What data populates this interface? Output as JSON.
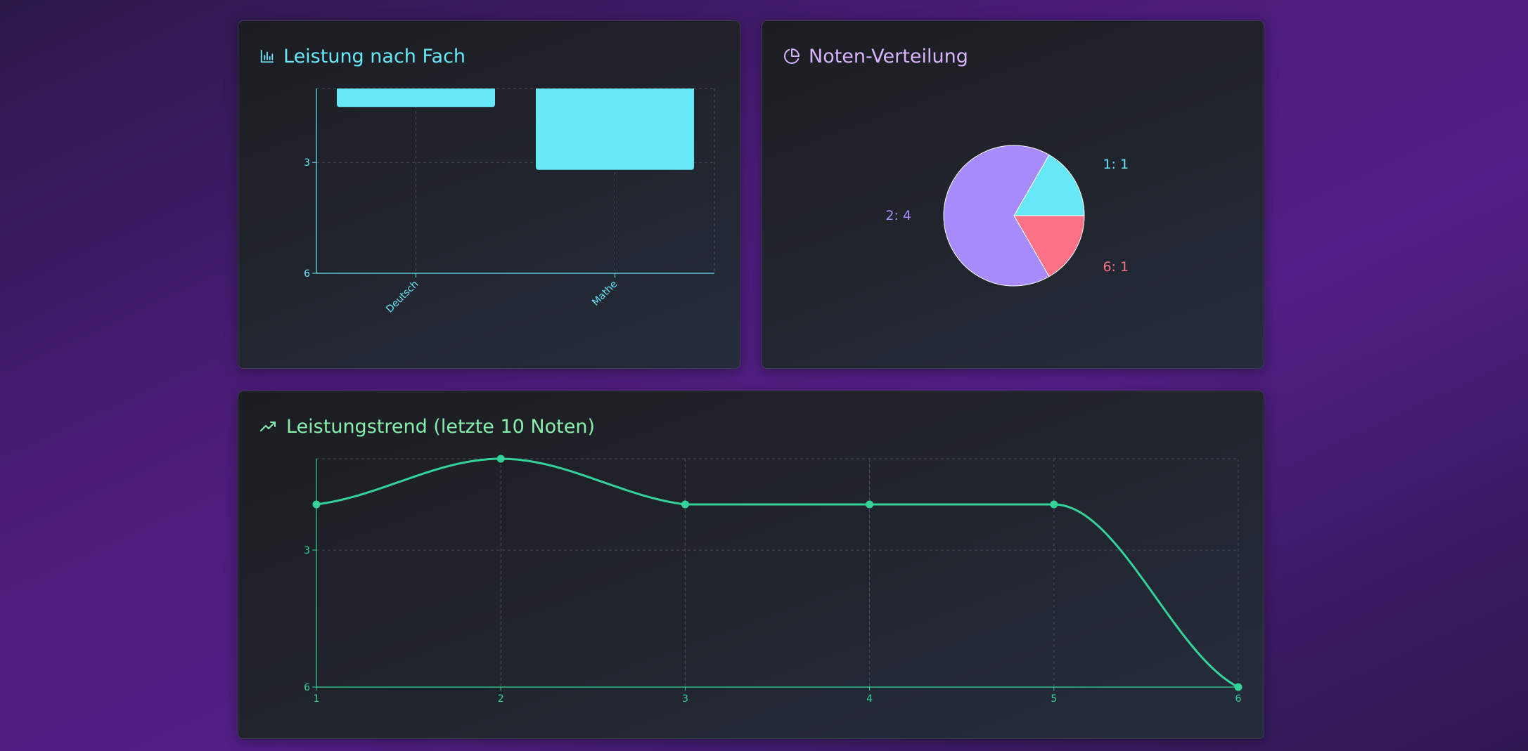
{
  "cards": {
    "bar": {
      "title": "Leistung nach Fach",
      "icon": "bar-chart-icon"
    },
    "pie": {
      "title": "Noten-Verteilung",
      "icon": "pie-chart-icon"
    },
    "line": {
      "title": "Leistungstrend (letzte 10 Noten)",
      "icon": "trending-up-icon"
    }
  },
  "colors": {
    "cyan": "#67e8f9",
    "purple": "#a78bfa",
    "red": "#fb7185",
    "green": "#34d399",
    "grid": "#4a4f5c"
  },
  "chart_data": [
    {
      "type": "bar",
      "title": "Leistung nach Fach",
      "categories": [
        "Deutsch",
        "Mathe"
      ],
      "values": [
        1.5,
        3.2
      ],
      "ylim": [
        1,
        6
      ],
      "y_inverted": true,
      "yticks": [
        3,
        6
      ],
      "grid": true,
      "xlabel": "",
      "ylabel": ""
    },
    {
      "type": "pie",
      "title": "Noten-Verteilung",
      "slices": [
        {
          "label": "1: 1",
          "grade": "1",
          "count": 1,
          "color": "#67e8f9"
        },
        {
          "label": "6: 1",
          "grade": "6",
          "count": 1,
          "color": "#fb7185"
        },
        {
          "label": "2: 4",
          "grade": "2",
          "count": 4,
          "color": "#a78bfa"
        }
      ]
    },
    {
      "type": "line",
      "title": "Leistungstrend (letzte 10 Noten)",
      "x": [
        1,
        2,
        3,
        4,
        5,
        6
      ],
      "values": [
        2,
        1,
        2,
        2,
        2,
        6
      ],
      "ylim": [
        1,
        6
      ],
      "y_inverted": true,
      "yticks": [
        3,
        6
      ],
      "xticks": [
        1,
        2,
        3,
        4,
        5,
        6
      ],
      "grid": true,
      "smooth": true
    }
  ]
}
